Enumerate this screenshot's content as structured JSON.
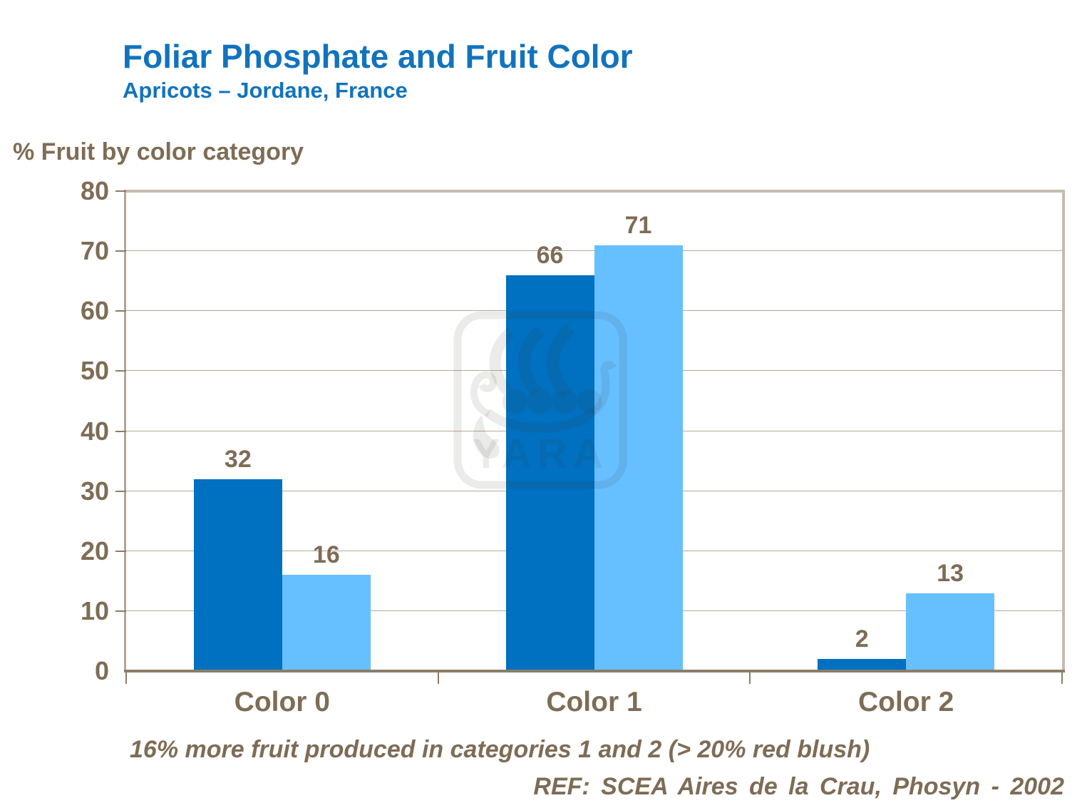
{
  "header": {
    "title": "Foliar Phosphate and Fruit Color",
    "subtitle": "Apricots – Jordane, France"
  },
  "footnote": "16% more fruit produced in categories 1 and 2 (> 20% red blush)",
  "reference": "REF: SCEA Aires de la Crau, Phosyn - 2002",
  "watermark": {
    "text": "YARA"
  },
  "colors": {
    "title_blue": "#1173BE",
    "text_brown": "#7E6C55",
    "dark_bar": "#0070C0",
    "light_bar": "#66BFFF",
    "gridline": "#B5A998",
    "frame_tan": "#C6BCAE",
    "axis_brown": "#8B7D68"
  },
  "chart_data": {
    "type": "bar",
    "title": "Foliar Phosphate and Fruit Color — Apricots, Jordane, France",
    "ylabel": "% Fruit by color category",
    "xlabel": "",
    "categories": [
      "Color 0",
      "Color 1",
      "Color 2"
    ],
    "series": [
      {
        "color": "#0070C0",
        "values": [
          32,
          66,
          2
        ]
      },
      {
        "color": "#66BFFF",
        "values": [
          16,
          71,
          13
        ]
      }
    ],
    "ylim": [
      0,
      80
    ],
    "ytick_step": 10,
    "grid": true,
    "legend_position": "none",
    "data_labels": true
  }
}
